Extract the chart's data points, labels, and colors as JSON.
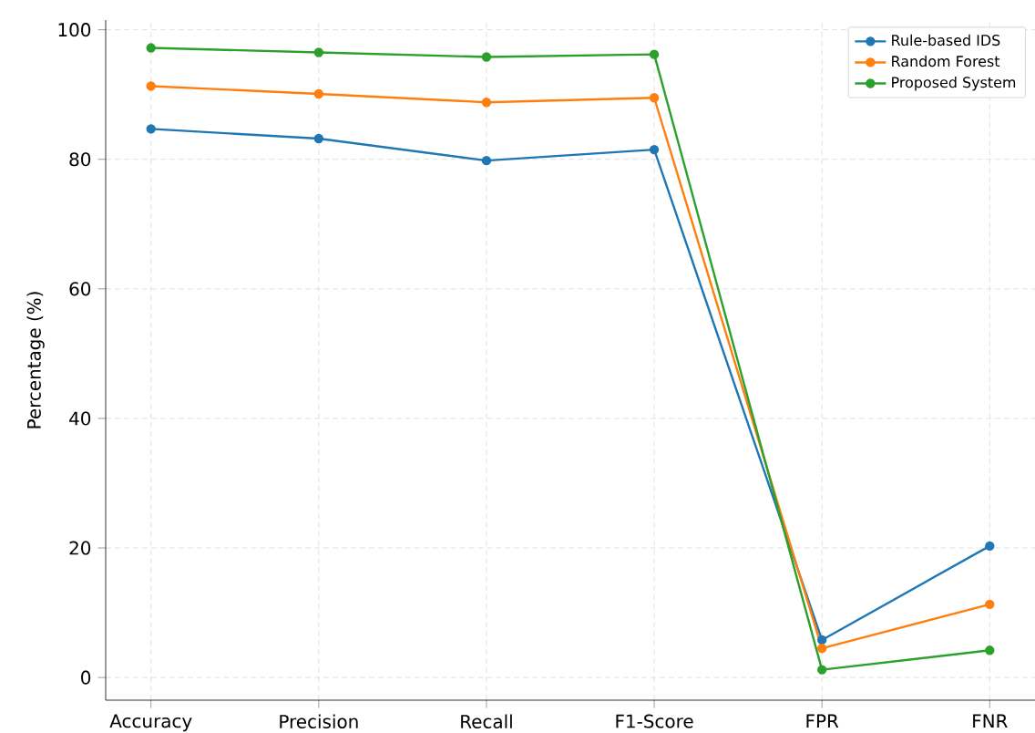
{
  "chart_data": {
    "type": "line",
    "ylabel": "Percentage (%)",
    "categories": [
      "Accuracy",
      "Precision",
      "Recall",
      "F1-Score",
      "FPR",
      "FNR"
    ],
    "series": [
      {
        "name": "Rule-based IDS",
        "color": "#1f77b4",
        "values": [
          84.7,
          83.2,
          79.8,
          81.5,
          5.8,
          20.3
        ]
      },
      {
        "name": "Random Forest",
        "color": "#ff7f0e",
        "values": [
          91.3,
          90.1,
          88.8,
          89.5,
          4.5,
          11.3
        ]
      },
      {
        "name": "Proposed System",
        "color": "#2ca02c",
        "values": [
          97.2,
          96.5,
          95.8,
          96.2,
          1.2,
          4.2
        ]
      }
    ],
    "ylim": [
      -3.5,
      101.5
    ],
    "yticks": [
      0,
      20,
      40,
      60,
      80,
      100
    ],
    "grid": true,
    "legend": "top right",
    "marker": "circle",
    "line_style": "solid"
  }
}
